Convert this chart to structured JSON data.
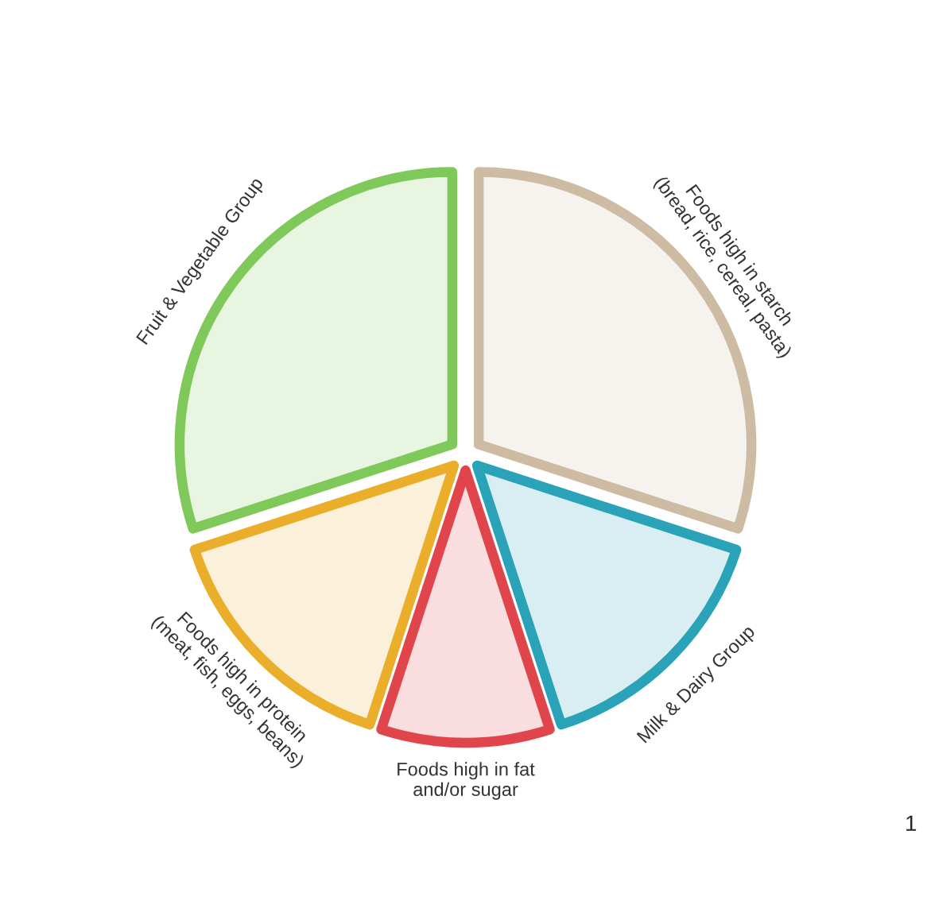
{
  "chart_data": {
    "type": "pie",
    "categories": [
      "Foods high in starch\n(bread, rice, cereal, pasta)",
      "Milk & Dairy Group",
      "Foods high in fat\nand/or sugar",
      "Foods high in protein\n(meat, fish, eggs, beans)",
      "Fruit & Vegetable Group"
    ],
    "values": [
      30,
      15,
      10,
      15,
      30
    ],
    "colors": [
      "#cdbba3",
      "#2aa3b8",
      "#e0454b",
      "#eaae2a",
      "#7ec95a"
    ],
    "annotations": [
      "1"
    ]
  }
}
